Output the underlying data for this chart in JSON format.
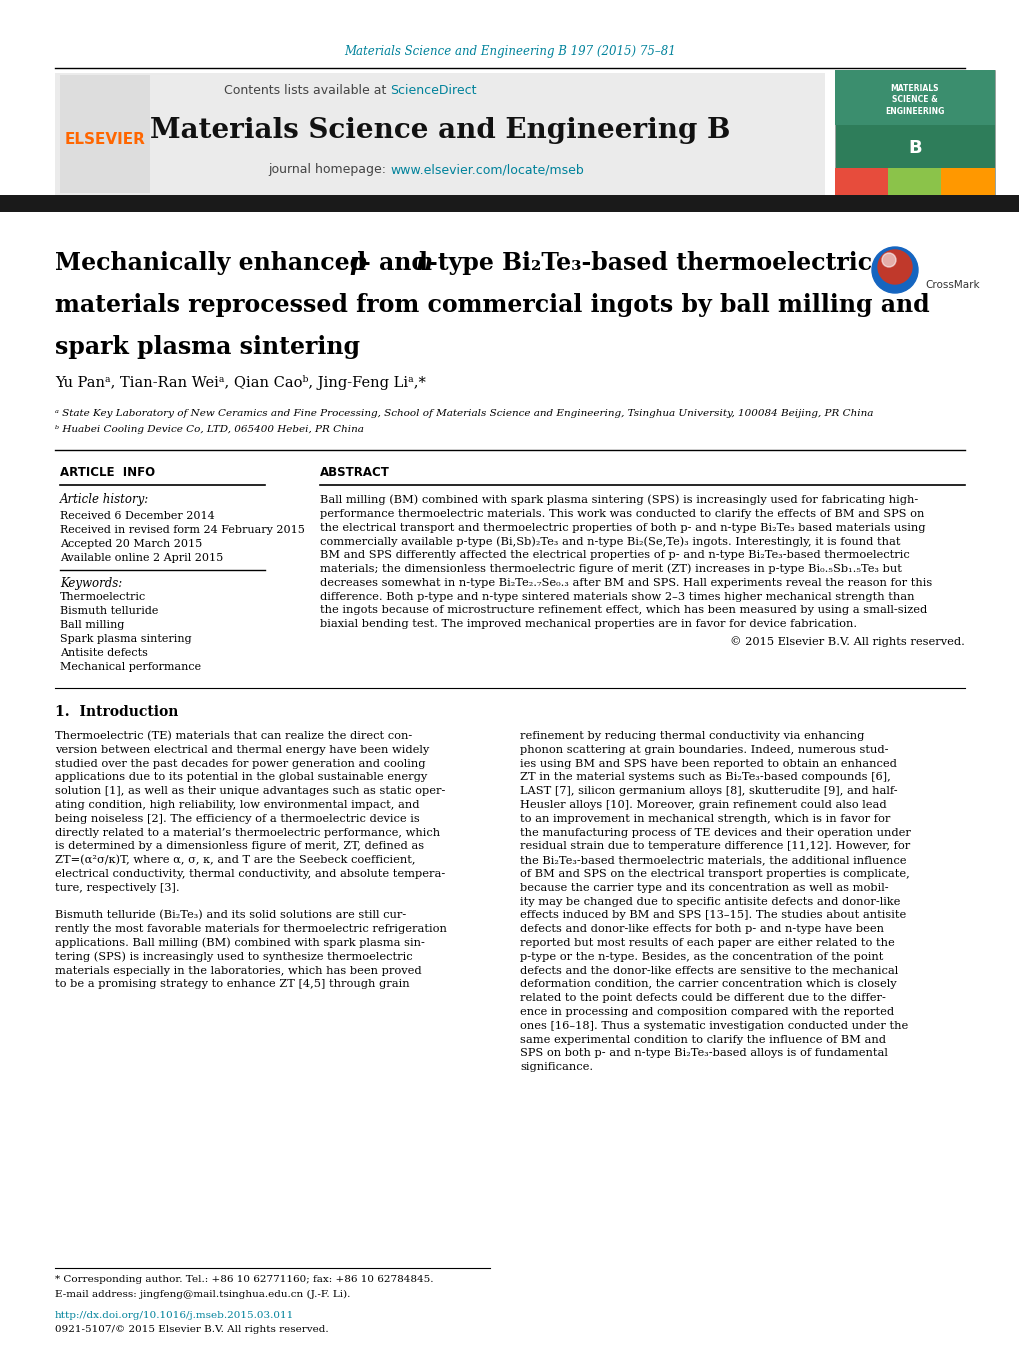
{
  "journal_ref": "Materials Science and Engineering B 197 (2015) 75–81",
  "journal_ref_color": "#00829B",
  "sciencedirect_color": "#00829B",
  "journal_name": "Materials Science and Engineering B",
  "journal_homepage_url": "www.elsevier.com/locate/mseb",
  "journal_homepage_color": "#00829B",
  "affiliation_a": "ᵃ State Key Laboratory of New Ceramics and Fine Processing, School of Materials Science and Engineering, Tsinghua University, 100084 Beijing, PR China",
  "affiliation_b": "ᵇ Huabei Cooling Device Co, LTD, 065400 Hebei, PR China",
  "article_info_header": "ARTICLE  INFO",
  "abstract_header": "ABSTRACT",
  "article_history_label": "Article history:",
  "received1": "Received 6 December 2014",
  "received2": "Received in revised form 24 February 2015",
  "accepted": "Accepted 20 March 2015",
  "available": "Available online 2 April 2015",
  "keywords_label": "Keywords:",
  "keywords": [
    "Thermoelectric",
    "Bismuth telluride",
    "Ball milling",
    "Spark plasma sintering",
    "Antisite defects",
    "Mechanical performance"
  ],
  "copyright": "© 2015 Elsevier B.V. All rights reserved.",
  "intro_header": "1.  Introduction",
  "footnote_star": "* Corresponding author. Tel.: +86 10 62771160; fax: +86 10 62784845.",
  "footnote_email": "E-mail address: jingfeng@mail.tsinghua.edu.cn (J.-F. Li).",
  "footnote_doi": "http://dx.doi.org/10.1016/j.mseb.2015.03.011",
  "footnote_issn": "0921-5107/© 2015 Elsevier B.V. All rights reserved.",
  "background_color": "#FFFFFF",
  "elsevier_color": "#FF6600",
  "abstract_lines": [
    "Ball milling (BM) combined with spark plasma sintering (SPS) is increasingly used for fabricating high-",
    "performance thermoelectric materials. This work was conducted to clarify the effects of BM and SPS on",
    "the electrical transport and thermoelectric properties of both p- and n-type Bi₂Te₃ based materials using",
    "commercially available p-type (Bi,Sb)₂Te₃ and n-type Bi₂(Se,Te)₃ ingots. Interestingly, it is found that",
    "BM and SPS differently affected the electrical properties of p- and n-type Bi₂Te₃-based thermoelectric",
    "materials; the dimensionless thermoelectric figure of merit (ZT) increases in p-type Bi₀.₅Sb₁.₅Te₃ but",
    "decreases somewhat in n-type Bi₂Te₂.₇Se₀.₃ after BM and SPS. Hall experiments reveal the reason for this",
    "difference. Both p-type and n-type sintered materials show 2–3 times higher mechanical strength than",
    "the ingots because of microstructure refinement effect, which has been measured by using a small-sized",
    "biaxial bending test. The improved mechanical properties are in favor for device fabrication."
  ],
  "body_left_lines": [
    "Thermoelectric (TE) materials that can realize the direct con-",
    "version between electrical and thermal energy have been widely",
    "studied over the past decades for power generation and cooling",
    "applications due to its potential in the global sustainable energy",
    "solution [1], as well as their unique advantages such as static oper-",
    "ating condition, high reliability, low environmental impact, and",
    "being noiseless [2]. The efficiency of a thermoelectric device is",
    "directly related to a material’s thermoelectric performance, which",
    "is determined by a dimensionless figure of merit, ZT, defined as",
    "ZT=(α²σ/κ)T, where α, σ, κ, and T are the Seebeck coefficient,",
    "electrical conductivity, thermal conductivity, and absolute tempera-",
    "ture, respectively [3].",
    "",
    "Bismuth telluride (Bi₂Te₃) and its solid solutions are still cur-",
    "rently the most favorable materials for thermoelectric refrigeration",
    "applications. Ball milling (BM) combined with spark plasma sin-",
    "tering (SPS) is increasingly used to synthesize thermoelectric",
    "materials especially in the laboratories, which has been proved",
    "to be a promising strategy to enhance ZT [4,5] through grain"
  ],
  "body_right_lines": [
    "refinement by reducing thermal conductivity via enhancing",
    "phonon scattering at grain boundaries. Indeed, numerous stud-",
    "ies using BM and SPS have been reported to obtain an enhanced",
    "ZT in the material systems such as Bi₂Te₃-based compounds [6],",
    "LAST [7], silicon germanium alloys [8], skutterudite [9], and half-",
    "Heusler alloys [10]. Moreover, grain refinement could also lead",
    "to an improvement in mechanical strength, which is in favor for",
    "the manufacturing process of TE devices and their operation under",
    "residual strain due to temperature difference [11,12]. However, for",
    "the Bi₂Te₃-based thermoelectric materials, the additional influence",
    "of BM and SPS on the electrical transport properties is complicate,",
    "because the carrier type and its concentration as well as mobil-",
    "ity may be changed due to specific antisite defects and donor-like",
    "effects induced by BM and SPS [13–15]. The studies about antisite",
    "defects and donor-like effects for both p- and n-type have been",
    "reported but most results of each paper are either related to the",
    "p-type or the n-type. Besides, as the concentration of the point",
    "defects and the donor-like effects are sensitive to the mechanical",
    "deformation condition, the carrier concentration which is closely",
    "related to the point defects could be different due to the differ-",
    "ence in processing and composition compared with the reported",
    "ones [16–18]. Thus a systematic investigation conducted under the",
    "same experimental condition to clarify the influence of BM and",
    "SPS on both p- and n-type Bi₂Te₃-based alloys is of fundamental",
    "significance."
  ]
}
